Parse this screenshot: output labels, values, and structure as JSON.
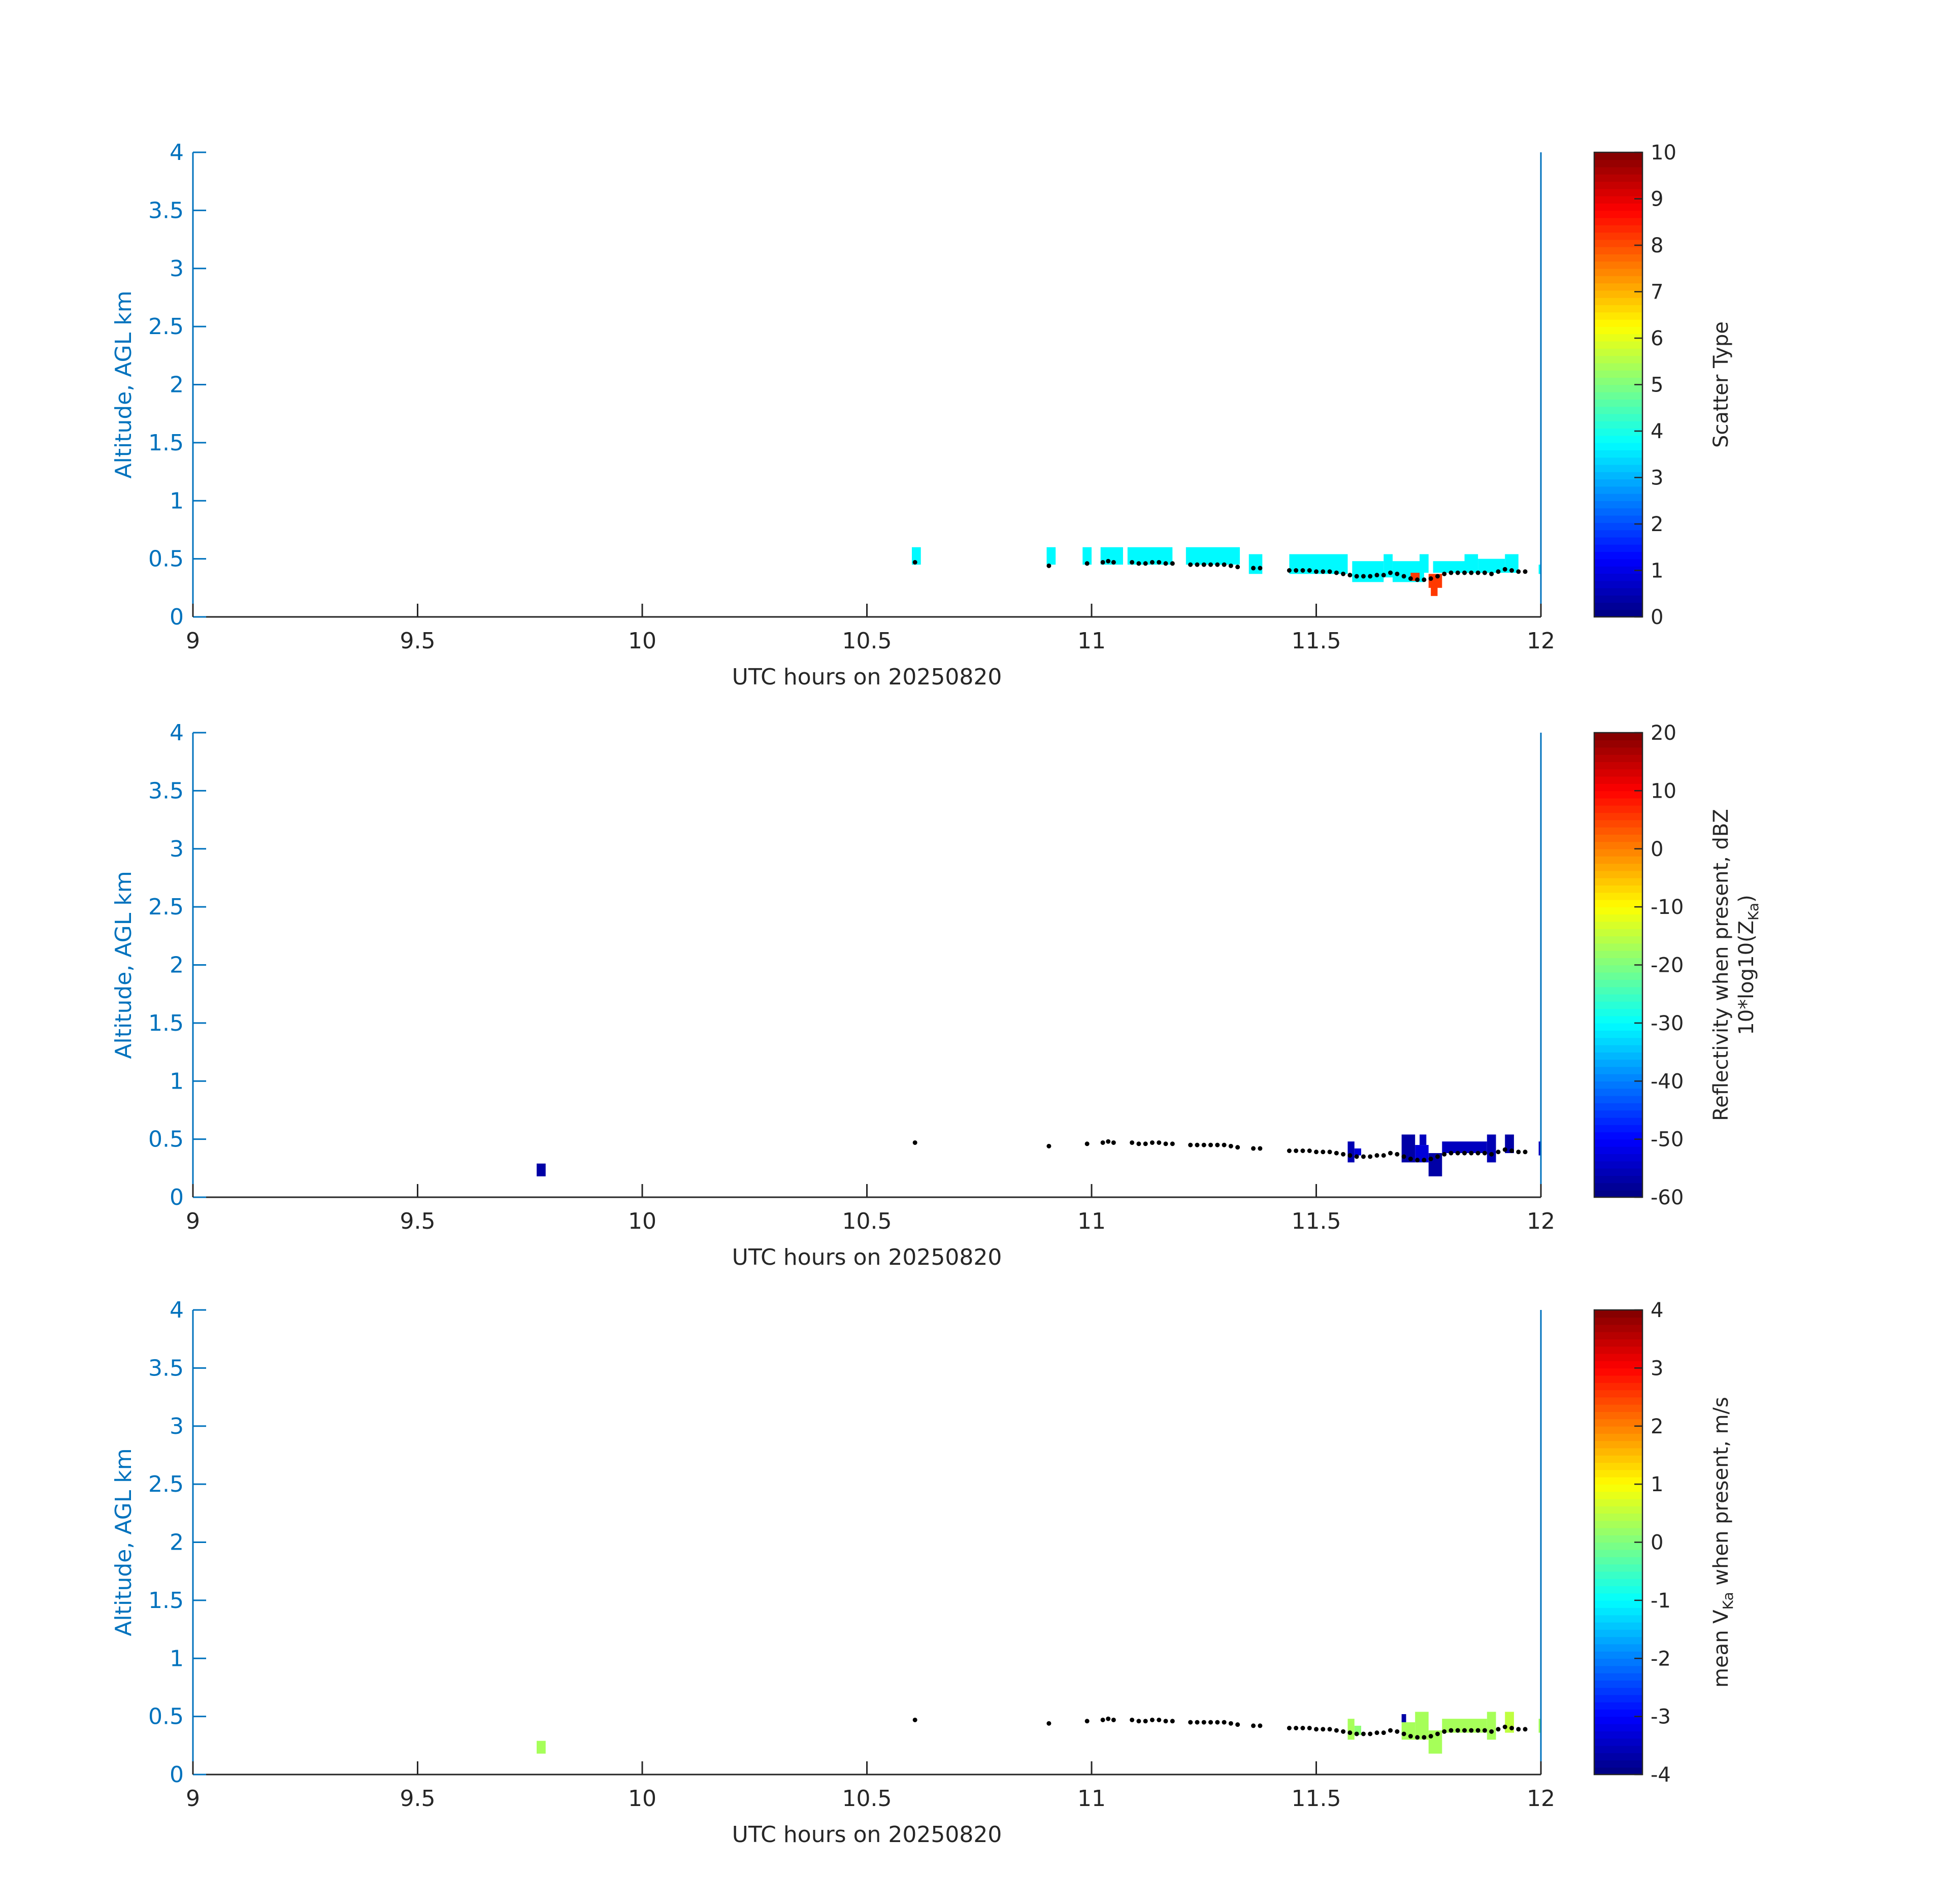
{
  "figure": {
    "background": "#ffffff",
    "axis_color_left": "#0072bd",
    "axis_color_bottom": "#262626",
    "panel_count": 3
  },
  "chart_data": [
    {
      "type": "heatmap",
      "panel_id": "scatter-type",
      "xlabel": "UTC hours on 20250820",
      "ylabel": "Altitude, AGL km",
      "xlim": [
        9,
        12
      ],
      "ylim": [
        0,
        4
      ],
      "xticks": [
        "9",
        "9.5",
        "10",
        "10.5",
        "11",
        "11.5",
        "12"
      ],
      "yticks": [
        "0",
        "0.5",
        "1",
        "1.5",
        "2",
        "2.5",
        "3",
        "3.5",
        "4"
      ],
      "colorbar": {
        "label": "Scatter Type",
        "label_line2": "",
        "label_sub": "",
        "label_after": "",
        "limits": [
          0,
          10
        ],
        "ticks": [
          "0",
          "1",
          "2",
          "3",
          "4",
          "5",
          "6",
          "7",
          "8",
          "9",
          "10"
        ],
        "colormap": "jet"
      },
      "cells": [
        {
          "x0": 10.6,
          "x1": 10.62,
          "y0": 0.45,
          "y1": 0.6,
          "v": 3.7
        },
        {
          "x0": 10.9,
          "x1": 10.92,
          "y0": 0.45,
          "y1": 0.6,
          "v": 3.7
        },
        {
          "x0": 10.98,
          "x1": 11.0,
          "y0": 0.45,
          "y1": 0.6,
          "v": 3.7
        },
        {
          "x0": 11.02,
          "x1": 11.07,
          "y0": 0.45,
          "y1": 0.6,
          "v": 3.7
        },
        {
          "x0": 11.08,
          "x1": 11.18,
          "y0": 0.45,
          "y1": 0.6,
          "v": 3.7
        },
        {
          "x0": 11.21,
          "x1": 11.33,
          "y0": 0.45,
          "y1": 0.6,
          "v": 3.7
        },
        {
          "x0": 11.35,
          "x1": 11.38,
          "y0": 0.37,
          "y1": 0.54,
          "v": 3.7
        },
        {
          "x0": 11.44,
          "x1": 11.57,
          "y0": 0.37,
          "y1": 0.54,
          "v": 3.7
        },
        {
          "x0": 11.58,
          "x1": 11.65,
          "y0": 0.3,
          "y1": 0.48,
          "v": 3.7
        },
        {
          "x0": 11.65,
          "x1": 11.67,
          "y0": 0.34,
          "y1": 0.54,
          "v": 3.7
        },
        {
          "x0": 11.67,
          "x1": 11.74,
          "y0": 0.3,
          "y1": 0.48,
          "v": 3.7
        },
        {
          "x0": 11.73,
          "x1": 11.75,
          "y0": 0.38,
          "y1": 0.54,
          "v": 3.7
        },
        {
          "x0": 11.76,
          "x1": 11.84,
          "y0": 0.38,
          "y1": 0.48,
          "v": 3.7
        },
        {
          "x0": 11.83,
          "x1": 11.86,
          "y0": 0.38,
          "y1": 0.54,
          "v": 3.7
        },
        {
          "x0": 11.86,
          "x1": 11.92,
          "y0": 0.38,
          "y1": 0.5,
          "v": 3.7
        },
        {
          "x0": 11.92,
          "x1": 11.95,
          "y0": 0.38,
          "y1": 0.54,
          "v": 3.7
        },
        {
          "x0": 11.995,
          "x1": 12.0,
          "y0": 0.37,
          "y1": 0.45,
          "v": 3.7
        },
        {
          "x0": 11.71,
          "x1": 11.73,
          "y0": 0.31,
          "y1": 0.38,
          "v": 8.2
        },
        {
          "x0": 11.75,
          "x1": 11.78,
          "y0": 0.25,
          "y1": 0.37,
          "v": 8.2
        },
        {
          "x0": 11.755,
          "x1": 11.77,
          "y0": 0.18,
          "y1": 0.26,
          "v": 8.2
        }
      ]
    },
    {
      "type": "heatmap",
      "panel_id": "reflectivity",
      "xlabel": "UTC hours on 20250820",
      "ylabel": "Altitude, AGL km",
      "xlim": [
        9,
        12
      ],
      "ylim": [
        0,
        4
      ],
      "xticks": [
        "9",
        "9.5",
        "10",
        "10.5",
        "11",
        "11.5",
        "12"
      ],
      "yticks": [
        "0",
        "0.5",
        "1",
        "1.5",
        "2",
        "2.5",
        "3",
        "3.5",
        "4"
      ],
      "colorbar": {
        "label": "Reflectivity when present, dBZ",
        "label_line2": "10*log10(Z",
        "label_sub": "Ka",
        "label_after": ")",
        "limits": [
          -60,
          20
        ],
        "ticks": [
          "-60",
          "-50",
          "-40",
          "-30",
          "-20",
          "-10",
          "0",
          "10",
          "20"
        ],
        "colormap": "jet"
      },
      "cells": [
        {
          "x0": 9.765,
          "x1": 9.785,
          "y0": 0.18,
          "y1": 0.29,
          "v": -57
        },
        {
          "x0": 11.57,
          "x1": 11.585,
          "y0": 0.3,
          "y1": 0.48,
          "v": -56
        },
        {
          "x0": 11.585,
          "x1": 11.6,
          "y0": 0.36,
          "y1": 0.42,
          "v": -53
        },
        {
          "x0": 11.69,
          "x1": 11.72,
          "y0": 0.3,
          "y1": 0.54,
          "v": -57
        },
        {
          "x0": 11.72,
          "x1": 11.75,
          "y0": 0.3,
          "y1": 0.45,
          "v": -53
        },
        {
          "x0": 11.73,
          "x1": 11.745,
          "y0": 0.45,
          "y1": 0.54,
          "v": -55
        },
        {
          "x0": 11.75,
          "x1": 11.78,
          "y0": 0.18,
          "y1": 0.38,
          "v": -57
        },
        {
          "x0": 11.78,
          "x1": 11.88,
          "y0": 0.38,
          "y1": 0.48,
          "v": -55
        },
        {
          "x0": 11.88,
          "x1": 11.9,
          "y0": 0.3,
          "y1": 0.54,
          "v": -56
        },
        {
          "x0": 11.92,
          "x1": 11.94,
          "y0": 0.38,
          "y1": 0.54,
          "v": -57
        },
        {
          "x0": 11.995,
          "x1": 12.0,
          "y0": 0.36,
          "y1": 0.48,
          "v": -55
        }
      ]
    },
    {
      "type": "heatmap",
      "panel_id": "velocity",
      "xlabel": "UTC hours on 20250820",
      "ylabel": "Altitude, AGL km",
      "xlim": [
        9,
        12
      ],
      "ylim": [
        0,
        4
      ],
      "xticks": [
        "9",
        "9.5",
        "10",
        "10.5",
        "11",
        "11.5",
        "12"
      ],
      "yticks": [
        "0",
        "0.5",
        "1",
        "1.5",
        "2",
        "2.5",
        "3",
        "3.5",
        "4"
      ],
      "colorbar": {
        "label": "mean V",
        "label_line2": "",
        "label_sub": "Ka",
        "label_after": " when present, m/s",
        "limits": [
          -4,
          4
        ],
        "ticks": [
          "-4",
          "-3",
          "-2",
          "-1",
          "0",
          "1",
          "2",
          "3",
          "4"
        ],
        "colormap": "jet"
      },
      "cells": [
        {
          "x0": 9.765,
          "x1": 9.785,
          "y0": 0.18,
          "y1": 0.29,
          "v": 0.3
        },
        {
          "x0": 11.57,
          "x1": 11.585,
          "y0": 0.3,
          "y1": 0.48,
          "v": 0.3
        },
        {
          "x0": 11.585,
          "x1": 11.6,
          "y0": 0.34,
          "y1": 0.42,
          "v": 0.1
        },
        {
          "x0": 11.69,
          "x1": 11.7,
          "y0": 0.45,
          "y1": 0.52,
          "v": -3.7
        },
        {
          "x0": 11.69,
          "x1": 11.72,
          "y0": 0.3,
          "y1": 0.45,
          "v": 0.3
        },
        {
          "x0": 11.72,
          "x1": 11.75,
          "y0": 0.3,
          "y1": 0.54,
          "v": 0.3
        },
        {
          "x0": 11.75,
          "x1": 11.78,
          "y0": 0.18,
          "y1": 0.38,
          "v": 0.3
        },
        {
          "x0": 11.78,
          "x1": 11.88,
          "y0": 0.36,
          "y1": 0.48,
          "v": 0.3
        },
        {
          "x0": 11.88,
          "x1": 11.9,
          "y0": 0.3,
          "y1": 0.54,
          "v": 0.3
        },
        {
          "x0": 11.92,
          "x1": 11.94,
          "y0": 0.36,
          "y1": 0.54,
          "v": 0.5
        },
        {
          "x0": 11.995,
          "x1": 12.0,
          "y0": 0.36,
          "y1": 0.48,
          "v": 0.3
        }
      ]
    }
  ],
  "cloud_base_points": [
    {
      "x": 10.607,
      "y": 0.47
    },
    {
      "x": 10.905,
      "y": 0.44
    },
    {
      "x": 10.99,
      "y": 0.46
    },
    {
      "x": 11.025,
      "y": 0.47
    },
    {
      "x": 11.037,
      "y": 0.48
    },
    {
      "x": 11.049,
      "y": 0.47
    },
    {
      "x": 11.09,
      "y": 0.47
    },
    {
      "x": 11.105,
      "y": 0.46
    },
    {
      "x": 11.12,
      "y": 0.46
    },
    {
      "x": 11.135,
      "y": 0.47
    },
    {
      "x": 11.15,
      "y": 0.47
    },
    {
      "x": 11.165,
      "y": 0.46
    },
    {
      "x": 11.18,
      "y": 0.46
    },
    {
      "x": 11.22,
      "y": 0.45
    },
    {
      "x": 11.235,
      "y": 0.45
    },
    {
      "x": 11.25,
      "y": 0.45
    },
    {
      "x": 11.265,
      "y": 0.45
    },
    {
      "x": 11.28,
      "y": 0.45
    },
    {
      "x": 11.295,
      "y": 0.45
    },
    {
      "x": 11.31,
      "y": 0.44
    },
    {
      "x": 11.325,
      "y": 0.43
    },
    {
      "x": 11.36,
      "y": 0.42
    },
    {
      "x": 11.375,
      "y": 0.42
    },
    {
      "x": 11.44,
      "y": 0.4
    },
    {
      "x": 11.455,
      "y": 0.4
    },
    {
      "x": 11.47,
      "y": 0.4
    },
    {
      "x": 11.485,
      "y": 0.4
    },
    {
      "x": 11.5,
      "y": 0.39
    },
    {
      "x": 11.515,
      "y": 0.39
    },
    {
      "x": 11.53,
      "y": 0.39
    },
    {
      "x": 11.545,
      "y": 0.38
    },
    {
      "x": 11.56,
      "y": 0.37
    },
    {
      "x": 11.575,
      "y": 0.36
    },
    {
      "x": 11.59,
      "y": 0.35
    },
    {
      "x": 11.605,
      "y": 0.35
    },
    {
      "x": 11.62,
      "y": 0.35
    },
    {
      "x": 11.635,
      "y": 0.36
    },
    {
      "x": 11.65,
      "y": 0.36
    },
    {
      "x": 11.665,
      "y": 0.38
    },
    {
      "x": 11.68,
      "y": 0.37
    },
    {
      "x": 11.695,
      "y": 0.35
    },
    {
      "x": 11.71,
      "y": 0.33
    },
    {
      "x": 11.725,
      "y": 0.32
    },
    {
      "x": 11.74,
      "y": 0.32
    },
    {
      "x": 11.755,
      "y": 0.33
    },
    {
      "x": 11.77,
      "y": 0.35
    },
    {
      "x": 11.785,
      "y": 0.37
    },
    {
      "x": 11.8,
      "y": 0.38
    },
    {
      "x": 11.815,
      "y": 0.38
    },
    {
      "x": 11.83,
      "y": 0.38
    },
    {
      "x": 11.845,
      "y": 0.38
    },
    {
      "x": 11.86,
      "y": 0.38
    },
    {
      "x": 11.875,
      "y": 0.38
    },
    {
      "x": 11.89,
      "y": 0.37
    },
    {
      "x": 11.905,
      "y": 0.39
    },
    {
      "x": 11.92,
      "y": 0.41
    },
    {
      "x": 11.935,
      "y": 0.4
    },
    {
      "x": 11.95,
      "y": 0.39
    },
    {
      "x": 11.965,
      "y": 0.39
    }
  ]
}
